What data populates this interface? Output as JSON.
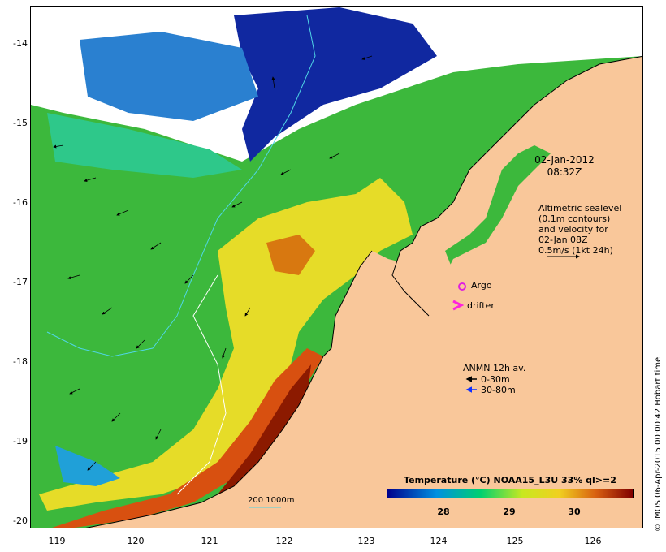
{
  "map": {
    "lat_ticks": [
      "-14",
      "-15",
      "-16",
      "-17",
      "-18",
      "-19",
      "-20"
    ],
    "lon_ticks": [
      "119",
      "120",
      "121",
      "122",
      "123",
      "124",
      "125",
      "126"
    ],
    "timestamp": [
      "02-Jan-2012",
      "08:32Z"
    ],
    "altimetry_note": [
      "Altimetric sealevel",
      "(0.1m contours)",
      "and velocity for",
      "02-Jan 08Z",
      "0.5m/s (1kt 24h)"
    ],
    "argo_label": "Argo",
    "drifter_label": "drifter",
    "anmn": {
      "title": "ANMN 12h av.",
      "shallow": "0-30m",
      "deep": "30-80m"
    },
    "isobath_label": "200  1000m",
    "colors": {
      "land": "#f9c79a",
      "argo": "#e020e0",
      "drifter": "#ff22dd",
      "isobath": "#4fd6e6",
      "deep_arrow": "#1030ff"
    }
  },
  "colorbar": {
    "title": "Temperature (°C) NOAA15_L3U 33% ql>=2",
    "ticks": [
      "28",
      "29",
      "30"
    ]
  },
  "credit": "© IMOS 06-Apr-2015 00:00:42 Hobart time"
}
